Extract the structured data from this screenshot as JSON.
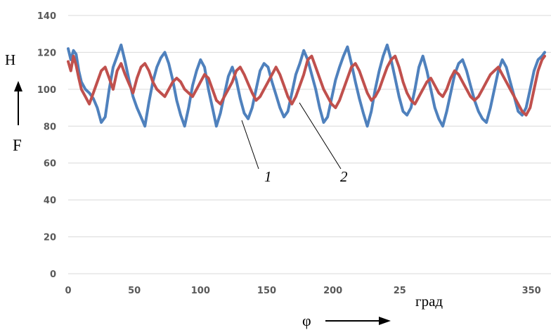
{
  "chart_data": {
    "type": "line",
    "xlim": [
      0,
      360
    ],
    "ylim": [
      0,
      140
    ],
    "x_ticks": [
      "0",
      "50",
      "100",
      "150",
      "200",
      "25",
      "0",
      "350"
    ],
    "y_ticks": [
      "0",
      "20",
      "40",
      "60",
      "80",
      "100",
      "120",
      "140"
    ],
    "grid": "horizontal",
    "legend": "none",
    "y_unit": "H",
    "y_symbol": "F",
    "x_symbol": "φ",
    "x_unit": "град",
    "series": [
      {
        "label": "1",
        "color": "#4f81bd",
        "x": [
          0,
          2,
          4,
          6,
          8,
          10,
          13,
          16,
          19,
          22,
          25,
          28,
          31,
          34,
          37,
          40,
          43,
          46,
          49,
          52,
          55,
          58,
          61,
          64,
          67,
          70,
          73,
          76,
          79,
          82,
          85,
          88,
          91,
          94,
          97,
          100,
          103,
          106,
          109,
          112,
          115,
          118,
          121,
          124,
          127,
          130,
          133,
          136,
          139,
          142,
          145,
          148,
          151,
          154,
          157,
          160,
          163,
          166,
          169,
          172,
          175,
          178,
          181,
          184,
          187,
          190,
          193,
          196,
          199,
          202,
          205,
          208,
          211,
          214,
          217,
          220,
          223,
          226,
          229,
          232,
          235,
          238,
          241,
          244,
          247,
          250,
          253,
          256,
          259,
          262,
          265,
          268,
          271,
          274,
          277,
          280,
          283,
          286,
          289,
          292,
          295,
          298,
          301,
          304,
          307,
          310,
          313,
          316,
          319,
          322,
          325,
          328,
          331,
          334,
          337,
          340,
          343,
          346,
          349,
          352,
          355,
          358,
          360
        ],
        "y": [
          122,
          116,
          121,
          119,
          110,
          104,
          100,
          98,
          95,
          90,
          82,
          85,
          100,
          112,
          118,
          124,
          115,
          105,
          96,
          90,
          85,
          80,
          93,
          104,
          112,
          117,
          120,
          114,
          105,
          94,
          86,
          80,
          90,
          102,
          110,
          116,
          112,
          100,
          90,
          80,
          87,
          97,
          107,
          112,
          105,
          95,
          87,
          84,
          90,
          100,
          110,
          114,
          112,
          104,
          97,
          90,
          85,
          88,
          98,
          108,
          114,
          121,
          116,
          108,
          100,
          90,
          82,
          85,
          95,
          105,
          112,
          118,
          123,
          114,
          104,
          95,
          87,
          80,
          88,
          100,
          110,
          118,
          124,
          116,
          106,
          96,
          88,
          86,
          90,
          100,
          112,
          118,
          110,
          100,
          90,
          84,
          80,
          88,
          98,
          108,
          114,
          116,
          110,
          102,
          94,
          88,
          84,
          82,
          90,
          100,
          110,
          116,
          112,
          104,
          96,
          88,
          86,
          90,
          100,
          110,
          116,
          118,
          120
        ]
      },
      {
        "label": "2",
        "color": "#c0504d",
        "x": [
          0,
          2,
          4,
          6,
          8,
          10,
          13,
          16,
          19,
          22,
          25,
          28,
          31,
          34,
          37,
          40,
          43,
          46,
          49,
          52,
          55,
          58,
          61,
          64,
          67,
          70,
          73,
          76,
          79,
          82,
          85,
          88,
          91,
          94,
          97,
          100,
          103,
          106,
          109,
          112,
          115,
          118,
          121,
          124,
          127,
          130,
          133,
          136,
          139,
          142,
          145,
          148,
          151,
          154,
          157,
          160,
          163,
          166,
          169,
          172,
          175,
          178,
          181,
          184,
          187,
          190,
          193,
          196,
          199,
          202,
          205,
          208,
          211,
          214,
          217,
          220,
          223,
          226,
          229,
          232,
          235,
          238,
          241,
          244,
          247,
          250,
          253,
          256,
          259,
          262,
          265,
          268,
          271,
          274,
          277,
          280,
          283,
          286,
          289,
          292,
          295,
          298,
          301,
          304,
          307,
          310,
          313,
          316,
          319,
          322,
          325,
          328,
          331,
          334,
          337,
          340,
          343,
          346,
          349,
          352,
          355,
          358,
          360
        ],
        "y": [
          115,
          110,
          118,
          113,
          106,
          100,
          96,
          92,
          98,
          104,
          110,
          112,
          106,
          100,
          110,
          114,
          108,
          103,
          98,
          106,
          112,
          114,
          110,
          104,
          100,
          98,
          96,
          100,
          104,
          106,
          104,
          100,
          98,
          96,
          100,
          104,
          108,
          106,
          100,
          94,
          92,
          96,
          100,
          104,
          110,
          112,
          108,
          103,
          98,
          94,
          96,
          100,
          104,
          108,
          112,
          108,
          102,
          96,
          92,
          96,
          102,
          108,
          116,
          118,
          112,
          106,
          100,
          96,
          92,
          90,
          94,
          100,
          106,
          112,
          114,
          110,
          104,
          98,
          94,
          96,
          100,
          106,
          112,
          116,
          118,
          112,
          104,
          98,
          94,
          92,
          96,
          100,
          104,
          106,
          102,
          98,
          96,
          100,
          106,
          110,
          108,
          104,
          100,
          96,
          94,
          96,
          100,
          104,
          108,
          110,
          112,
          108,
          104,
          100,
          96,
          92,
          88,
          86,
          90,
          100,
          110,
          116,
          118
        ]
      }
    ],
    "annotations": [
      "1",
      "2"
    ]
  }
}
